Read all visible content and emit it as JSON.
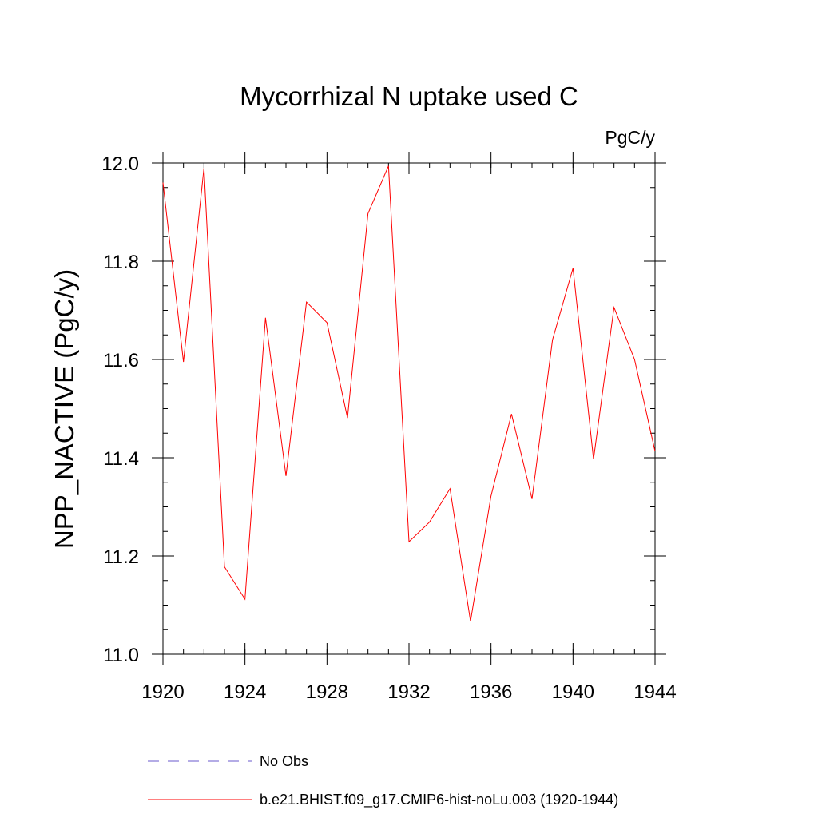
{
  "chart_data": {
    "type": "line",
    "title": "Mycorrhizal N uptake used C",
    "units_label": "PgC/y",
    "ylabel": "NPP_NACTIVE  (PgC/y)",
    "xlabel": "",
    "xlim": [
      1920,
      1944
    ],
    "ylim": [
      11.0,
      12.0
    ],
    "x_ticks": [
      1920,
      1924,
      1928,
      1932,
      1936,
      1940,
      1944
    ],
    "y_ticks": [
      "11.0",
      "11.2",
      "11.4",
      "11.6",
      "11.8",
      "12.0"
    ],
    "grid": false,
    "legend_position": "bottom",
    "series": [
      {
        "name": "b.e21.BHIST.f09_g17.CMIP6-hist-noLu.003 (1920-1944)",
        "color": "#ff0000",
        "style": "solid",
        "x": [
          1920,
          1921,
          1922,
          1923,
          1924,
          1925,
          1926,
          1927,
          1928,
          1929,
          1930,
          1931,
          1932,
          1933,
          1934,
          1935,
          1936,
          1937,
          1938,
          1939,
          1940,
          1941,
          1942,
          1943,
          1944
        ],
        "y": [
          11.96,
          11.595,
          11.99,
          11.178,
          11.112,
          11.685,
          11.363,
          11.717,
          11.675,
          11.481,
          11.897,
          11.994,
          11.229,
          11.269,
          11.337,
          11.067,
          11.322,
          11.489,
          11.316,
          11.64,
          11.786,
          11.397,
          11.706,
          11.6,
          11.413
        ]
      }
    ],
    "legend": [
      {
        "label": "No Obs",
        "color": "#6a5acd",
        "style": "dashed"
      },
      {
        "label": "b.e21.BHIST.f09_g17.CMIP6-hist-noLu.003 (1920-1944)",
        "color": "#ff0000",
        "style": "solid"
      }
    ]
  }
}
